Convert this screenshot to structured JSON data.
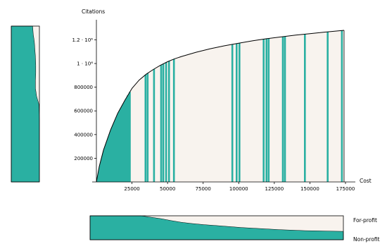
{
  "chart_data": [
    {
      "type": "area",
      "title": "",
      "ylabel": "Citations",
      "xlabel": "Cost",
      "xlim": [
        0,
        175000
      ],
      "ylim": [
        0,
        1310000
      ],
      "x_ticks": [
        {
          "value": 25000,
          "label": "25000"
        },
        {
          "value": 50000,
          "label": "50000"
        },
        {
          "value": 75000,
          "label": "75000"
        },
        {
          "value": 100000,
          "label": "100000"
        },
        {
          "value": 125000,
          "label": "125000"
        },
        {
          "value": 150000,
          "label": "150000"
        },
        {
          "value": 175000,
          "label": "175000"
        }
      ],
      "y_ticks": [
        {
          "value": 200000,
          "label": "200000"
        },
        {
          "value": 400000,
          "label": "400000"
        },
        {
          "value": 600000,
          "label": "600000"
        },
        {
          "value": 800000,
          "label": "800000"
        },
        {
          "value": 1000000,
          "label": "1 · 10⁶"
        },
        {
          "value": 1200000,
          "label": "1.2 · 10⁶"
        }
      ],
      "curve": {
        "x": [
          0,
          2000,
          5000,
          10000,
          15000,
          20000,
          25000,
          30000,
          35000,
          40000,
          45000,
          50000,
          55000,
          60000,
          70000,
          80000,
          90000,
          100000,
          110000,
          120000,
          130000,
          140000,
          150000,
          160000,
          170000,
          174000
        ],
        "y": [
          0,
          130000,
          270000,
          440000,
          580000,
          690000,
          790000,
          860000,
          910000,
          950000,
          985000,
          1015000,
          1040000,
          1060000,
          1095000,
          1125000,
          1150000,
          1172000,
          1192000,
          1210000,
          1225000,
          1240000,
          1252000,
          1265000,
          1276000,
          1280000
        ]
      },
      "filled_region_x": [
        0,
        23000
      ],
      "highlight_bars_x": [
        22000,
        23500,
        34500,
        36000,
        40500,
        45500,
        47000,
        49000,
        51000,
        54500,
        95500,
        98500,
        100500,
        117500,
        119500,
        121000,
        131000,
        132500,
        146500,
        162500,
        172500
      ],
      "colors": {
        "fill": "#2ab0a2",
        "background": "#f8f3ee",
        "curve": "#000000"
      }
    },
    {
      "type": "area",
      "orientation": "vertical",
      "title": "",
      "fraction_profile": {
        "y": [
          0,
          0.05,
          0.1,
          0.15,
          0.2,
          0.25,
          0.3,
          0.35,
          0.4,
          0.45,
          0.5,
          0.6,
          0.7,
          0.8,
          0.9,
          1.0
        ],
        "value": [
          0.76,
          0.78,
          0.82,
          0.84,
          0.86,
          0.87,
          0.87,
          0.86,
          0.86,
          0.9,
          0.98,
          1.0,
          1.0,
          1.0,
          1.0,
          1.0
        ]
      },
      "colors": {
        "fill": "#2ab0a2",
        "background": "#f8f3ee"
      }
    },
    {
      "type": "area",
      "title": "",
      "series": [
        {
          "name": "For-profit",
          "role": "upper region"
        },
        {
          "name": "Non-profit",
          "role": "lower region"
        }
      ],
      "nonprofit_fraction": {
        "x": [
          0,
          0.15,
          0.2,
          0.24,
          0.28,
          0.32,
          0.36,
          0.4,
          0.45,
          0.5,
          0.55,
          0.6,
          0.65,
          0.7,
          0.75,
          0.8,
          0.85,
          0.9,
          0.95,
          1.0
        ],
        "value": [
          1.0,
          1.0,
          1.0,
          0.94,
          0.88,
          0.8,
          0.73,
          0.68,
          0.63,
          0.59,
          0.55,
          0.51,
          0.48,
          0.45,
          0.42,
          0.4,
          0.38,
          0.37,
          0.36,
          0.35
        ]
      },
      "colors": {
        "fill": "#2ab0a2",
        "background": "#f8f3ee"
      }
    }
  ]
}
